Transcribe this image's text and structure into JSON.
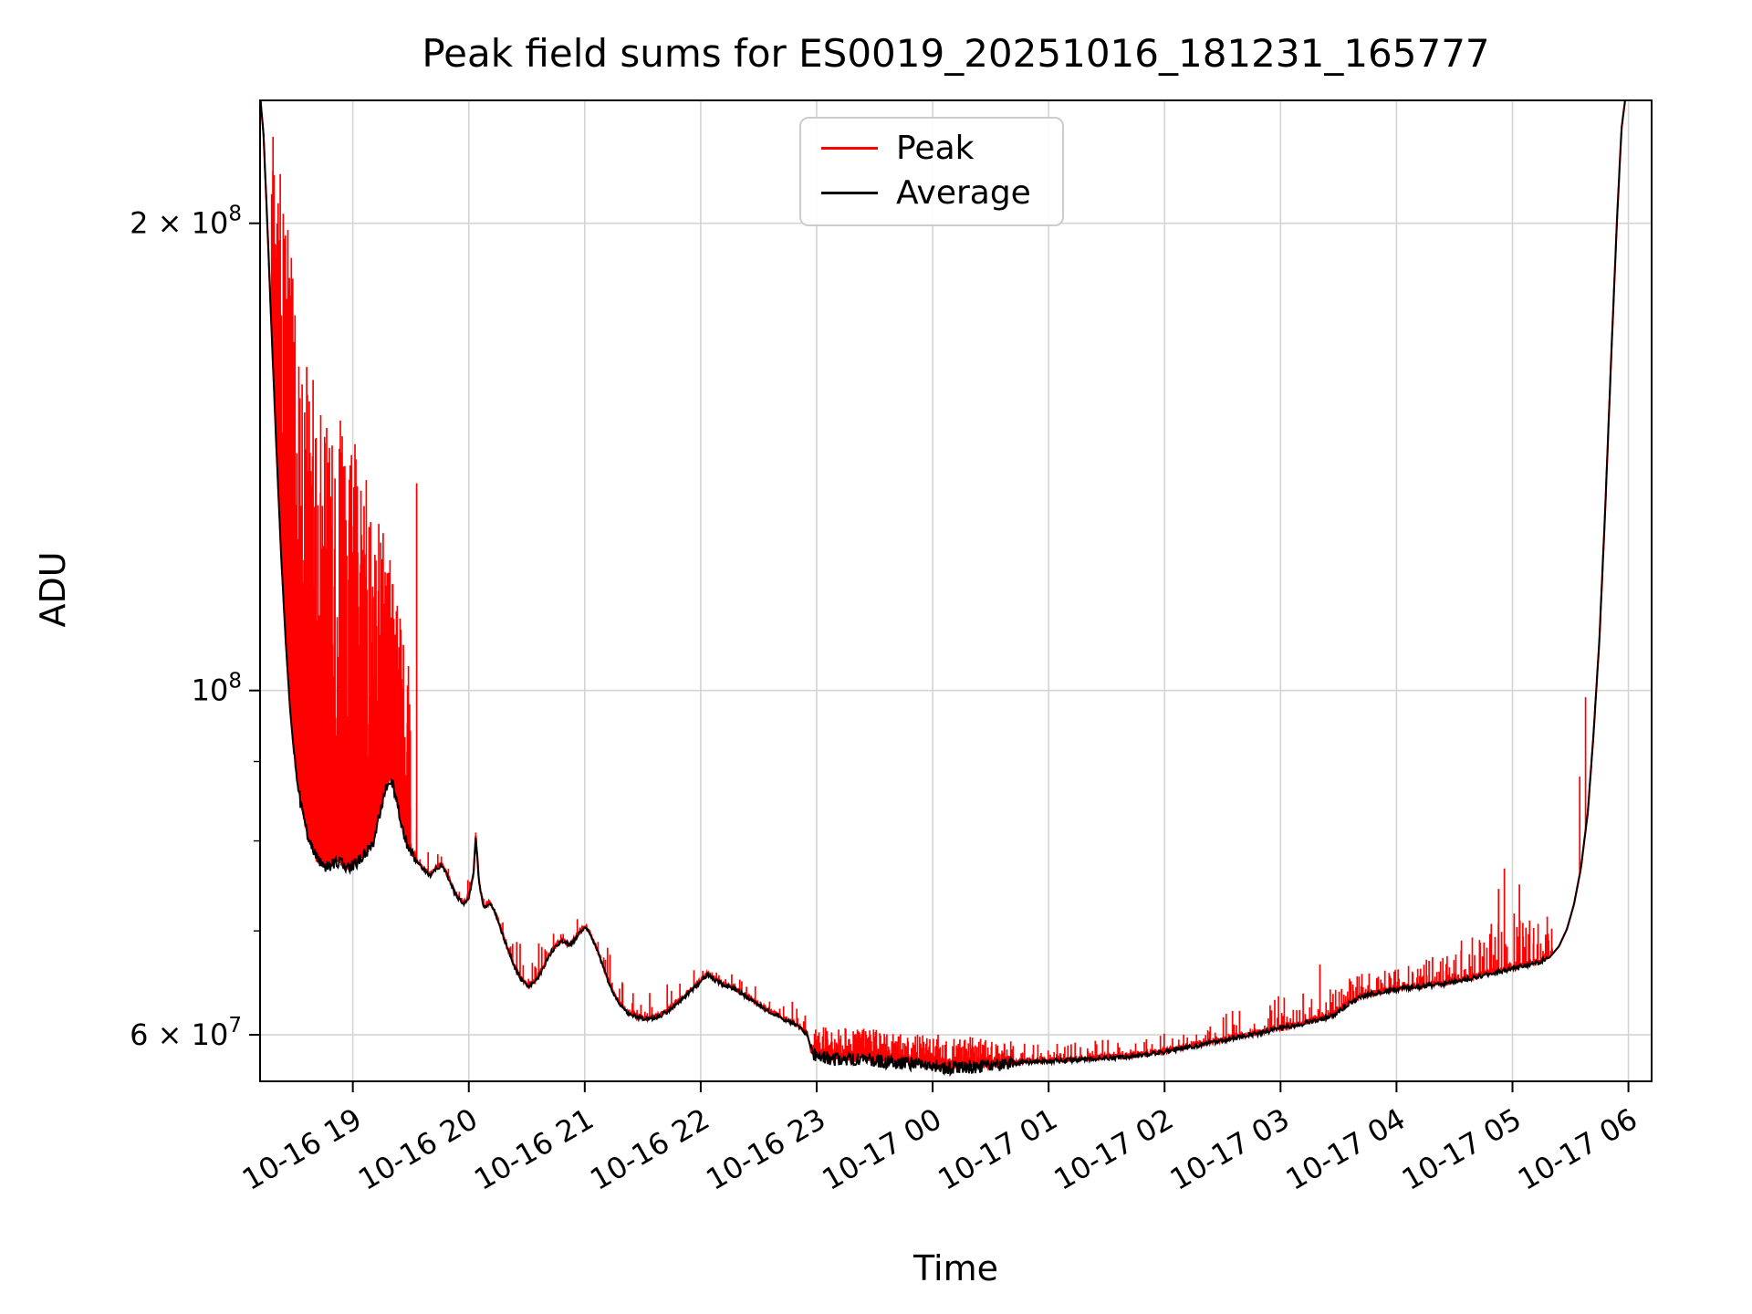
{
  "title": "Peak field sums for ES0019_20251016_181231_165777",
  "chart_data": {
    "type": "line",
    "title": "Peak field sums for ES0019_20251016_181231_165777",
    "xlabel": "Time",
    "ylabel": "ADU",
    "y_scale": "log",
    "grid": true,
    "legend_position": "upper center",
    "x_unit": "hours since 2025-10-16 18:00",
    "x_domain": [
      0.2,
      12.2
    ],
    "y_domain": [
      56000000.0,
      240000000.0
    ],
    "noise_seed": 20251016,
    "series": [
      {
        "name": "Peak",
        "color": "#ff0000"
      },
      {
        "name": "Average",
        "color": "#000000"
      }
    ],
    "x_ticks": [
      {
        "t": 1,
        "label": "10-16 19"
      },
      {
        "t": 2,
        "label": "10-16 20"
      },
      {
        "t": 3,
        "label": "10-16 21"
      },
      {
        "t": 4,
        "label": "10-16 22"
      },
      {
        "t": 5,
        "label": "10-16 23"
      },
      {
        "t": 6,
        "label": "10-17 00"
      },
      {
        "t": 7,
        "label": "10-17 01"
      },
      {
        "t": 8,
        "label": "10-17 02"
      },
      {
        "t": 9,
        "label": "10-17 03"
      },
      {
        "t": 10,
        "label": "10-17 04"
      },
      {
        "t": 11,
        "label": "10-17 05"
      },
      {
        "t": 12,
        "label": "10-17 06"
      }
    ],
    "y_ticks": [
      {
        "v": 60000000.0,
        "base": "6 × 10",
        "sup": "7"
      },
      {
        "v": 100000000.0,
        "base": "10",
        "sup": "8"
      },
      {
        "v": 200000000.0,
        "base": "2 × 10",
        "sup": "8"
      }
    ],
    "y_minor_ticks": [
      70000000.0,
      80000000.0,
      90000000.0
    ],
    "average_points": [
      [
        0.2,
        242000000.0
      ],
      [
        0.23,
        228000000.0
      ],
      [
        0.26,
        202000000.0
      ],
      [
        0.3,
        170000000.0
      ],
      [
        0.34,
        144000000.0
      ],
      [
        0.38,
        123000000.0
      ],
      [
        0.42,
        108000000.0
      ],
      [
        0.46,
        97000000.0
      ],
      [
        0.5,
        90000000.0
      ],
      [
        0.55,
        84500000.0
      ],
      [
        0.6,
        81200000.0
      ],
      [
        0.65,
        79000000.0
      ],
      [
        0.7,
        77800000.0
      ],
      [
        0.76,
        77000000.0
      ],
      [
        0.82,
        77300000.0
      ],
      [
        0.88,
        77600000.0
      ],
      [
        0.94,
        76800000.0
      ],
      [
        1.0,
        77200000.0
      ],
      [
        1.06,
        77800000.0
      ],
      [
        1.12,
        78600000.0
      ],
      [
        1.18,
        80000000.0
      ],
      [
        1.24,
        84000000.0
      ],
      [
        1.29,
        86800000.0
      ],
      [
        1.33,
        87800000.0
      ],
      [
        1.37,
        85500000.0
      ],
      [
        1.42,
        82000000.0
      ],
      [
        1.47,
        79500000.0
      ],
      [
        1.53,
        78000000.0
      ],
      [
        1.6,
        76800000.0
      ],
      [
        1.67,
        76000000.0
      ],
      [
        1.72,
        76800000.0
      ],
      [
        1.77,
        77200000.0
      ],
      [
        1.82,
        75800000.0
      ],
      [
        1.88,
        74000000.0
      ],
      [
        1.95,
        72800000.0
      ],
      [
        2.0,
        73500000.0
      ],
      [
        2.04,
        76000000.0
      ],
      [
        2.06,
        80500000.0
      ],
      [
        2.09,
        75000000.0
      ],
      [
        2.13,
        72500000.0
      ],
      [
        2.18,
        73000000.0
      ],
      [
        2.23,
        71800000.0
      ],
      [
        2.28,
        70000000.0
      ],
      [
        2.34,
        68000000.0
      ],
      [
        2.4,
        66200000.0
      ],
      [
        2.46,
        65000000.0
      ],
      [
        2.52,
        64500000.0
      ],
      [
        2.58,
        65000000.0
      ],
      [
        2.64,
        66200000.0
      ],
      [
        2.7,
        67600000.0
      ],
      [
        2.76,
        68600000.0
      ],
      [
        2.82,
        69000000.0
      ],
      [
        2.87,
        68500000.0
      ],
      [
        2.92,
        69200000.0
      ],
      [
        2.97,
        70000000.0
      ],
      [
        3.01,
        70400000.0
      ],
      [
        3.06,
        69400000.0
      ],
      [
        3.12,
        67600000.0
      ],
      [
        3.18,
        65600000.0
      ],
      [
        3.24,
        64000000.0
      ],
      [
        3.3,
        62800000.0
      ],
      [
        3.37,
        62000000.0
      ],
      [
        3.45,
        61600000.0
      ],
      [
        3.55,
        61400000.0
      ],
      [
        3.65,
        61700000.0
      ],
      [
        3.75,
        62400000.0
      ],
      [
        3.85,
        63400000.0
      ],
      [
        3.95,
        64400000.0
      ],
      [
        4.02,
        65200000.0
      ],
      [
        4.06,
        65600000.0
      ],
      [
        4.1,
        65200000.0
      ],
      [
        4.18,
        64700000.0
      ],
      [
        4.28,
        64300000.0
      ],
      [
        4.38,
        63600000.0
      ],
      [
        4.48,
        62800000.0
      ],
      [
        4.58,
        62200000.0
      ],
      [
        4.68,
        61600000.0
      ],
      [
        4.78,
        61100000.0
      ],
      [
        4.86,
        60600000.0
      ],
      [
        4.92,
        60000000.0
      ],
      [
        4.96,
        58400000.0
      ],
      [
        5.02,
        58100000.0
      ],
      [
        5.12,
        57900000.0
      ],
      [
        5.25,
        57800000.0
      ],
      [
        5.4,
        58000000.0
      ],
      [
        5.55,
        57700000.0
      ],
      [
        5.7,
        57600000.0
      ],
      [
        5.85,
        57500000.0
      ],
      [
        6.0,
        57300000.0
      ],
      [
        6.15,
        57100000.0
      ],
      [
        6.3,
        57200000.0
      ],
      [
        6.45,
        57300000.0
      ],
      [
        6.6,
        57400000.0
      ],
      [
        6.8,
        57600000.0
      ],
      [
        7.0,
        57700000.0
      ],
      [
        7.2,
        57800000.0
      ],
      [
        7.4,
        57900000.0
      ],
      [
        7.6,
        58000000.0
      ],
      [
        7.8,
        58200000.0
      ],
      [
        8.0,
        58500000.0
      ],
      [
        8.2,
        58900000.0
      ],
      [
        8.4,
        59300000.0
      ],
      [
        8.6,
        59700000.0
      ],
      [
        8.8,
        60100000.0
      ],
      [
        9.0,
        60600000.0
      ],
      [
        9.2,
        61000000.0
      ],
      [
        9.35,
        61400000.0
      ],
      [
        9.48,
        61900000.0
      ],
      [
        9.58,
        62800000.0
      ],
      [
        9.68,
        63400000.0
      ],
      [
        9.8,
        63800000.0
      ],
      [
        9.95,
        64100000.0
      ],
      [
        10.1,
        64300000.0
      ],
      [
        10.25,
        64500000.0
      ],
      [
        10.4,
        64700000.0
      ],
      [
        10.55,
        65000000.0
      ],
      [
        10.7,
        65400000.0
      ],
      [
        10.85,
        65800000.0
      ],
      [
        11.0,
        66200000.0
      ],
      [
        11.12,
        66500000.0
      ],
      [
        11.22,
        66800000.0
      ],
      [
        11.32,
        67300000.0
      ],
      [
        11.4,
        68400000.0
      ],
      [
        11.47,
        70200000.0
      ],
      [
        11.53,
        72800000.0
      ],
      [
        11.59,
        76800000.0
      ],
      [
        11.65,
        83500000.0
      ],
      [
        11.7,
        94000000.0
      ],
      [
        11.75,
        108000000.0
      ],
      [
        11.8,
        131000000.0
      ],
      [
        11.85,
        163000000.0
      ],
      [
        11.9,
        200000000.0
      ],
      [
        11.94,
        230000000.0
      ],
      [
        11.98,
        243000000.0
      ],
      [
        12.2,
        246000000.0
      ]
    ],
    "average_jitter": [
      {
        "t0": 0.5,
        "t1": 1.55,
        "amp": 0.009
      },
      {
        "t0": 1.55,
        "t1": 4.92,
        "amp": 0.003
      },
      {
        "t0": 4.95,
        "t1": 6.7,
        "amp": 0.01
      },
      {
        "t0": 6.7,
        "t1": 11.3,
        "amp": 0.0035
      }
    ],
    "peak_noise_regions": [
      {
        "t0": 0.3,
        "t1": 1.5,
        "count": 330,
        "power": 0.75,
        "envelope": [
          [
            0.3,
            235000000.0
          ],
          [
            0.4,
            210000000.0
          ],
          [
            0.5,
            185000000.0
          ],
          [
            0.6,
            162000000.0
          ],
          [
            0.7,
            156000000.0
          ],
          [
            0.8,
            150000000.0
          ],
          [
            0.9,
            152000000.0
          ],
          [
            1.0,
            147000000.0
          ],
          [
            1.1,
            138000000.0
          ],
          [
            1.2,
            134000000.0
          ],
          [
            1.3,
            124000000.0
          ],
          [
            1.4,
            112000000.0
          ],
          [
            1.5,
            105000000.0
          ]
        ]
      },
      {
        "t0": 1.5,
        "t1": 4.92,
        "count": 150,
        "power": 2.2,
        "envelope": [
          [
            1.5,
            83000000.0
          ],
          [
            2.0,
            76000000.0
          ],
          [
            2.5,
            68000000.0
          ],
          [
            3.0,
            72000000.0
          ],
          [
            3.5,
            63500000.0
          ],
          [
            4.1,
            67000000.0
          ],
          [
            4.92,
            62500000.0
          ]
        ]
      },
      {
        "t0": 4.95,
        "t1": 6.7,
        "count": 300,
        "power": 1.1,
        "envelope": [
          [
            4.95,
            60800000.0
          ],
          [
            5.5,
            60500000.0
          ],
          [
            6.1,
            60000000.0
          ],
          [
            6.7,
            59500000.0
          ]
        ]
      },
      {
        "t0": 6.7,
        "t1": 9.55,
        "count": 170,
        "power": 2.0,
        "envelope": [
          [
            6.7,
            59200000.0
          ],
          [
            7.5,
            59600000.0
          ],
          [
            8.3,
            61200000.0
          ],
          [
            9.0,
            63600000.0
          ],
          [
            9.55,
            65000000.0
          ]
        ]
      },
      {
        "t0": 9.55,
        "t1": 11.35,
        "count": 180,
        "power": 1.5,
        "envelope": [
          [
            9.55,
            65500000.0
          ],
          [
            10.0,
            66200000.0
          ],
          [
            10.5,
            68200000.0
          ],
          [
            10.8,
            71200000.0
          ],
          [
            11.0,
            72000000.0
          ],
          [
            11.35,
            70500000.0
          ]
        ]
      }
    ],
    "peak_spikes": [
      [
        0.44,
        198000000.0
      ],
      [
        0.47,
        190000000.0
      ],
      [
        1.55,
        136000000.0
      ],
      [
        2.06,
        81000000.0
      ],
      [
        9.34,
        66600000.0
      ],
      [
        10.56,
        69000000.0
      ],
      [
        10.88,
        74500000.0
      ],
      [
        10.93,
        76800000.0
      ],
      [
        11.06,
        75000000.0
      ],
      [
        11.3,
        71500000.0
      ],
      [
        11.58,
        88000000.0
      ],
      [
        11.63,
        99000000.0
      ]
    ]
  }
}
